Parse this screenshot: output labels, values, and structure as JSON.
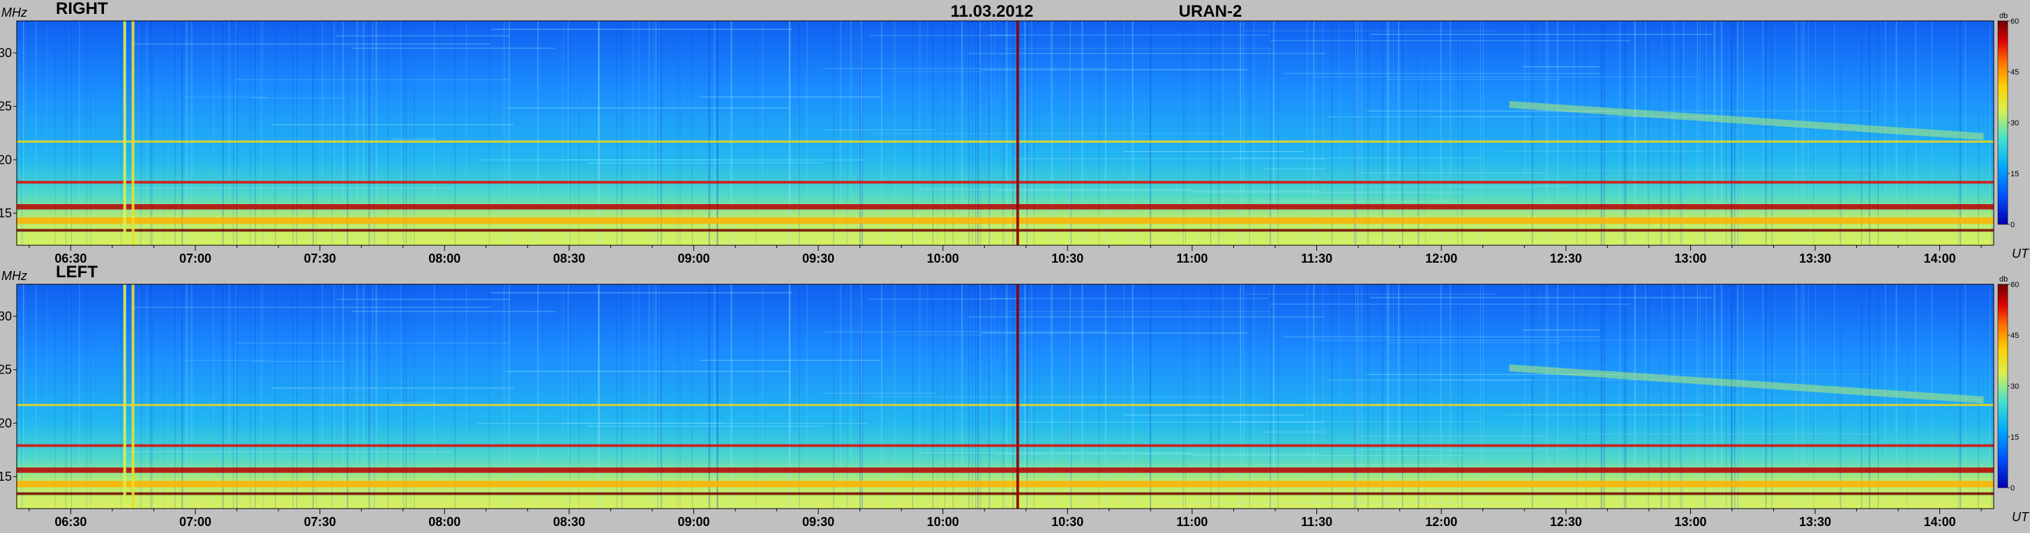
{
  "header": {
    "date": "11.03.2012",
    "instrument": "URAN-2"
  },
  "colors": {
    "background": "#c0c0c0",
    "colormap": [
      "#0000b0",
      "#0050ff",
      "#00a8ff",
      "#40e0d0",
      "#d8f050",
      "#ffd000",
      "#ff7000",
      "#e00000",
      "#700000"
    ]
  },
  "chart_data": [
    {
      "type": "heatmap",
      "title": "RIGHT",
      "ylabel": "MHz",
      "xlabel": "UT",
      "colorbar_label": "db",
      "x_range": [
        "06:17",
        "14:13"
      ],
      "x_ticks": [
        "06:30",
        "07:00",
        "07:30",
        "08:00",
        "08:30",
        "09:00",
        "09:30",
        "10:00",
        "10:30",
        "11:00",
        "11:30",
        "12:00",
        "12:30",
        "13:00",
        "13:30",
        "14:00"
      ],
      "ylim": [
        12,
        33
      ],
      "y_ticks": [
        15,
        20,
        25,
        30
      ],
      "colorbar_range": [
        0,
        60
      ],
      "colorbar_ticks": [
        0,
        15,
        30,
        45,
        60
      ],
      "grid": false,
      "features": [
        {
          "kind": "hband",
          "freq": 15.6,
          "width": 0.5,
          "level": 55
        },
        {
          "kind": "hband",
          "freq": 14.3,
          "width": 0.6,
          "level": 40
        },
        {
          "kind": "hband",
          "freq": 17.9,
          "width": 0.25,
          "level": 52
        },
        {
          "kind": "hband",
          "freq": 21.7,
          "width": 0.2,
          "level": 36
        },
        {
          "kind": "hband",
          "freq": 13.4,
          "width": 0.25,
          "level": 60
        },
        {
          "kind": "burst",
          "time": "10:18",
          "level": 58
        },
        {
          "kind": "burst",
          "time": "06:45",
          "level": 34
        },
        {
          "kind": "burst",
          "time": "06:43",
          "level": 30
        },
        {
          "kind": "drift",
          "time": "13:00",
          "freq_start": 25.5,
          "freq_end": 22.5,
          "level": 28
        }
      ]
    },
    {
      "type": "heatmap",
      "title": "LEFT",
      "ylabel": "MHz",
      "xlabel": "UT",
      "colorbar_label": "db",
      "x_range": [
        "06:17",
        "14:13"
      ],
      "x_ticks": [
        "06:30",
        "07:00",
        "07:30",
        "08:00",
        "08:30",
        "09:00",
        "09:30",
        "10:00",
        "10:30",
        "11:00",
        "11:30",
        "12:00",
        "12:30",
        "13:00",
        "13:30",
        "14:00"
      ],
      "ylim": [
        12,
        33
      ],
      "y_ticks": [
        15,
        20,
        25,
        30
      ],
      "colorbar_range": [
        0,
        60
      ],
      "colorbar_ticks": [
        0,
        15,
        30,
        45,
        60
      ],
      "grid": false,
      "features": [
        {
          "kind": "hband",
          "freq": 15.6,
          "width": 0.5,
          "level": 55
        },
        {
          "kind": "hband",
          "freq": 14.3,
          "width": 0.6,
          "level": 40
        },
        {
          "kind": "hband",
          "freq": 17.9,
          "width": 0.25,
          "level": 52
        },
        {
          "kind": "hband",
          "freq": 21.7,
          "width": 0.2,
          "level": 36
        },
        {
          "kind": "hband",
          "freq": 13.4,
          "width": 0.25,
          "level": 60
        },
        {
          "kind": "burst",
          "time": "10:18",
          "level": 58
        },
        {
          "kind": "burst",
          "time": "06:45",
          "level": 34
        },
        {
          "kind": "burst",
          "time": "06:43",
          "level": 30
        },
        {
          "kind": "drift",
          "time": "13:00",
          "freq_start": 25.5,
          "freq_end": 22.5,
          "level": 28
        }
      ]
    }
  ]
}
